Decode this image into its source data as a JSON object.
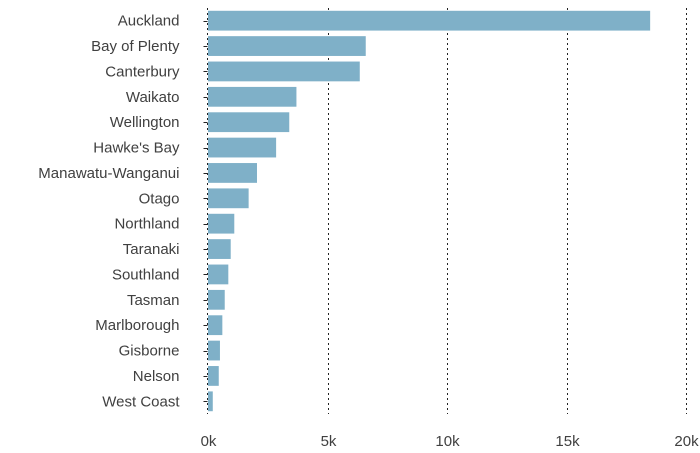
{
  "chart_data": {
    "type": "bar",
    "orientation": "horizontal",
    "title": "",
    "xlabel": "",
    "ylabel": "",
    "categories": [
      "Auckland",
      "Bay of Plenty",
      "Canterbury",
      "Waikato",
      "Wellington",
      "Hawke's Bay",
      "Manawatu-Wanganui",
      "Otago",
      "Northland",
      "Taranaki",
      "Southland",
      "Tasman",
      "Marlborough",
      "Gisborne",
      "Nelson",
      "West Coast"
    ],
    "values": [
      18500,
      6600,
      6350,
      3700,
      3400,
      2850,
      2050,
      1700,
      1100,
      950,
      850,
      700,
      600,
      500,
      450,
      200
    ],
    "xlim": [
      0,
      20000
    ],
    "xticks": [
      0,
      5000,
      10000,
      15000,
      20000
    ],
    "xtick_labels": [
      "0k",
      "5k",
      "10k",
      "15k",
      "20k"
    ],
    "grid": "vertical-dotted",
    "bar_color": "#7fb0c8",
    "legend": "none"
  }
}
